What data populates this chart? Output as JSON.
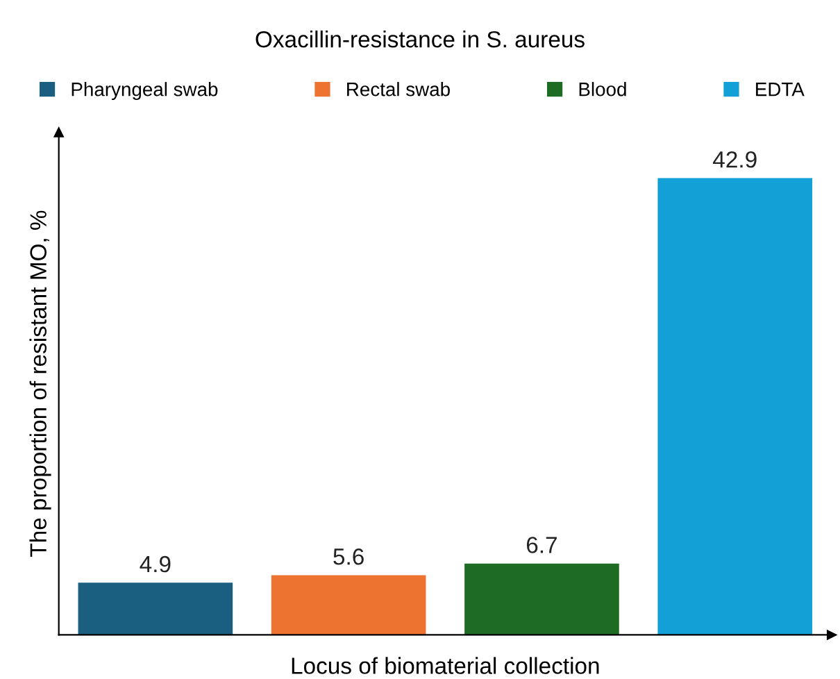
{
  "chart_data": {
    "type": "bar",
    "title": "Oxacillin-resistance in S. aureus",
    "xlabel": "Locus of biomaterial collection",
    "ylabel": "The proportion of resistant MO, %",
    "categories": [
      null
    ],
    "series": [
      {
        "name": "Pharyngeal swab",
        "color": "#1a5f80",
        "values": [
          4.9
        ]
      },
      {
        "name": "Rectal swab",
        "color": "#ed7331",
        "values": [
          5.6
        ]
      },
      {
        "name": "Blood",
        "color": "#1e6b24",
        "values": [
          6.7
        ]
      },
      {
        "name": "EDTA",
        "color": "#13a0d6",
        "values": [
          42.9
        ]
      }
    ],
    "data_labels": true,
    "legend": "top",
    "grid": false
  }
}
